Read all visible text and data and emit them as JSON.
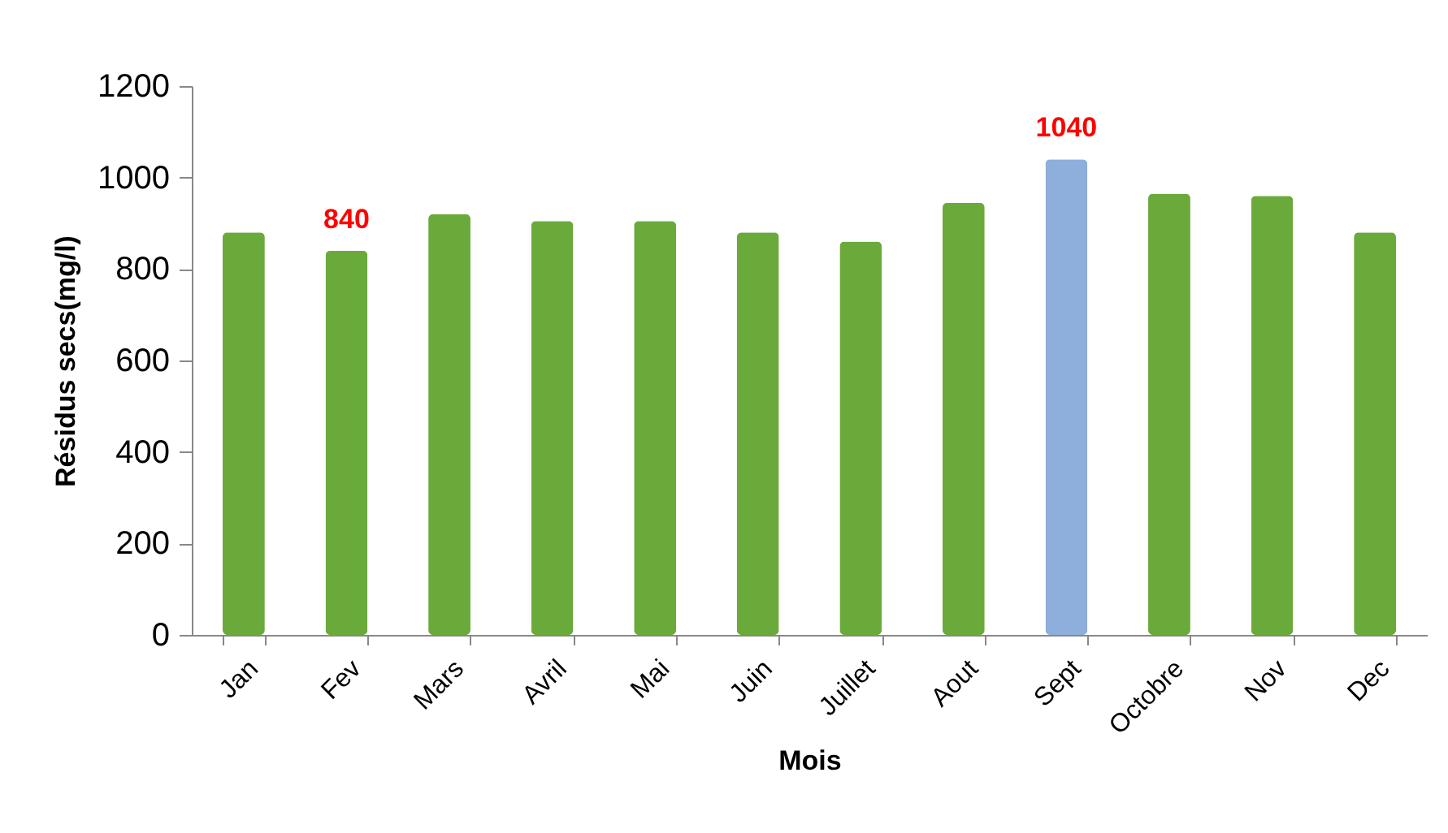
{
  "chart_data": {
    "type": "bar",
    "xlabel": "Mois",
    "ylabel": "Résidus secs(mg/l)",
    "categories": [
      "Jan",
      "Fev",
      "Mars",
      "Avril",
      "Mai",
      "Juin",
      "Juillet",
      "Aout",
      "Sept",
      "Octobre",
      "Nov",
      "Dec"
    ],
    "values": [
      880,
      840,
      920,
      905,
      905,
      880,
      860,
      945,
      1040,
      965,
      960,
      880
    ],
    "colors": [
      "#6aaa3a",
      "#6aaa3a",
      "#6aaa3a",
      "#6aaa3a",
      "#6aaa3a",
      "#6aaa3a",
      "#6aaa3a",
      "#6aaa3a",
      "#8eaedb",
      "#6aaa3a",
      "#6aaa3a",
      "#6aaa3a"
    ],
    "value_labels": [
      null,
      "840",
      null,
      null,
      null,
      null,
      null,
      null,
      "1040",
      null,
      null,
      null
    ],
    "ylim": [
      0,
      1200
    ],
    "yticks": [
      0,
      200,
      400,
      600,
      800,
      1000,
      1200
    ]
  }
}
